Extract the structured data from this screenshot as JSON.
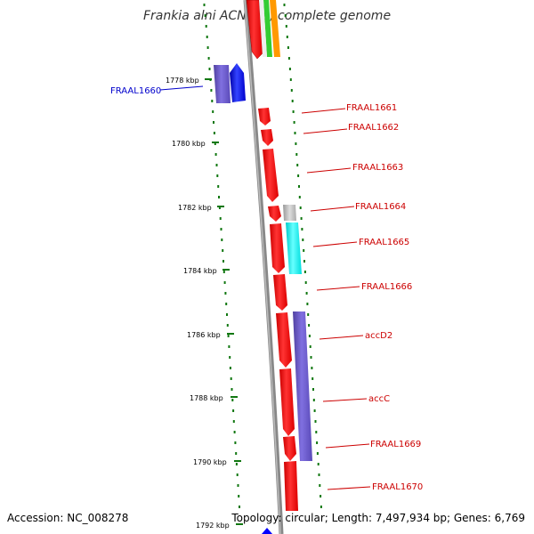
{
  "title": "Frankia alni ACN14a, complete genome",
  "footer": {
    "accession": "Accession: NC_008278",
    "summary": "Topology: circular; Length: 7,497,934 bp; Genes: 6,769"
  },
  "scale_ticks": [
    "1778 kbp",
    "1780 kbp",
    "1782 kbp",
    "1784 kbp",
    "1786 kbp",
    "1788 kbp",
    "1790 kbp",
    "1792 kbp"
  ],
  "left_genes": [
    {
      "label": "FRAAL1660",
      "color": "#0000cc"
    }
  ],
  "right_genes": [
    {
      "label": "FRAAL1661",
      "color": "#cc0000"
    },
    {
      "label": "FRAAL1662",
      "color": "#cc0000"
    },
    {
      "label": "FRAAL1663",
      "color": "#cc0000"
    },
    {
      "label": "FRAAL1664",
      "color": "#cc0000"
    },
    {
      "label": "FRAAL1665",
      "color": "#cc0000"
    },
    {
      "label": "FRAAL1666",
      "color": "#cc0000"
    },
    {
      "label": "accD2",
      "color": "#cc0000"
    },
    {
      "label": "accC",
      "color": "#cc0000"
    },
    {
      "label": "FRAAL1669",
      "color": "#cc0000"
    },
    {
      "label": "FRAAL1670",
      "color": "#cc0000"
    }
  ],
  "colors": {
    "red_gene": "#ff0000",
    "blue_gene": "#0000ff",
    "purple_gene": "#6a5acd",
    "cyan_gene": "#00ffff",
    "grey_gene": "#bbbbbb",
    "green_gene": "#33cc33",
    "orange_gene": "#ff9900",
    "backbone": "#888888",
    "dots": "#117711"
  }
}
